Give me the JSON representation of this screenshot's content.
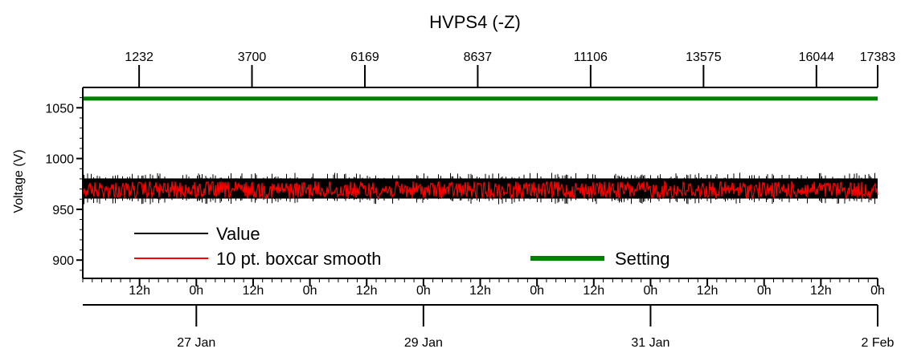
{
  "chart_data": {
    "type": "line",
    "title": "HVPS4 (-Z)",
    "ylabel": "Voltage (V)",
    "xlabel": "",
    "ylim": [
      882,
      1070
    ],
    "y_ticks": [
      900,
      950,
      1000,
      1050
    ],
    "top_axis": {
      "range": [
        0,
        17383
      ],
      "ticks": [
        1232,
        3700,
        6169,
        8637,
        11106,
        13575,
        16044,
        17383
      ]
    },
    "bottom_axis": {
      "range_hours": [
        0,
        168
      ],
      "time_ticks": [
        {
          "hours": 12,
          "label": "12h"
        },
        {
          "hours": 24,
          "label": "0h"
        },
        {
          "hours": 36,
          "label": "12h"
        },
        {
          "hours": 48,
          "label": "0h"
        },
        {
          "hours": 60,
          "label": "12h"
        },
        {
          "hours": 72,
          "label": "0h"
        },
        {
          "hours": 84,
          "label": "12h"
        },
        {
          "hours": 96,
          "label": "0h"
        },
        {
          "hours": 108,
          "label": "12h"
        },
        {
          "hours": 120,
          "label": "0h"
        },
        {
          "hours": 132,
          "label": "12h"
        },
        {
          "hours": 144,
          "label": "0h"
        },
        {
          "hours": 156,
          "label": "12h"
        },
        {
          "hours": 168,
          "label": "0h"
        }
      ],
      "date_ticks": [
        {
          "hours": 24,
          "label": "27 Jan"
        },
        {
          "hours": 72,
          "label": "29 Jan"
        },
        {
          "hours": 120,
          "label": "31 Jan"
        },
        {
          "hours": 168,
          "label": "2 Feb"
        }
      ]
    },
    "series": [
      {
        "name": "Value",
        "color": "#000000",
        "mean": 969,
        "min": 959,
        "max": 982,
        "style": "noisy"
      },
      {
        "name": "10 pt. boxcar smooth",
        "color": "#ff0000",
        "mean": 969,
        "min": 961,
        "max": 978,
        "style": "smoothed"
      },
      {
        "name": "Setting",
        "color": "#008000",
        "value": 1059,
        "style": "constant"
      }
    ],
    "grid": false,
    "legend_position": "bottom-left"
  }
}
